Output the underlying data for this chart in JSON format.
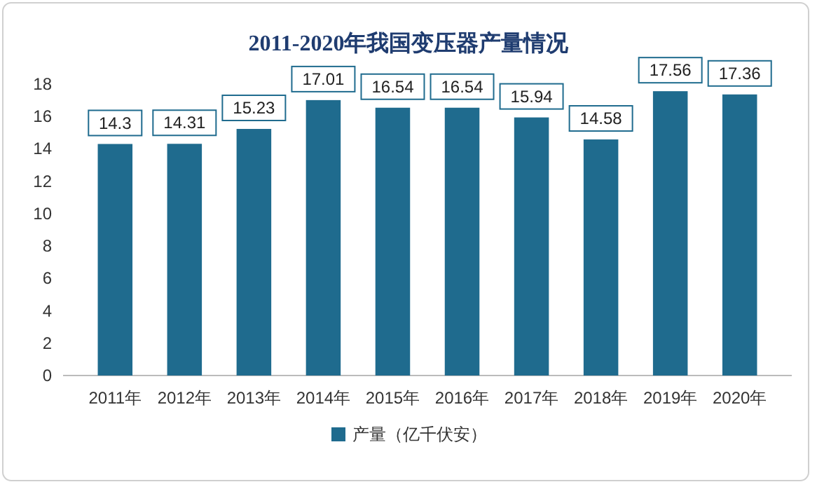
{
  "chart_data": {
    "type": "bar",
    "title": "2011-2020年我国变压器产量情况",
    "categories": [
      "2011年",
      "2012年",
      "2013年",
      "2014年",
      "2015年",
      "2016年",
      "2017年",
      "2018年",
      "2019年",
      "2020年"
    ],
    "series": [
      {
        "name": "产量（亿千伏安）",
        "color": "#1f6b8e",
        "values": [
          14.3,
          14.31,
          15.23,
          17.01,
          16.54,
          16.54,
          15.94,
          14.58,
          17.56,
          17.36
        ]
      }
    ],
    "ylim": [
      0,
      18
    ],
    "yticks": [
      0,
      2,
      4,
      6,
      8,
      10,
      12,
      14,
      16,
      18
    ],
    "data_labels": true,
    "legend": "bottom",
    "grid": false
  }
}
